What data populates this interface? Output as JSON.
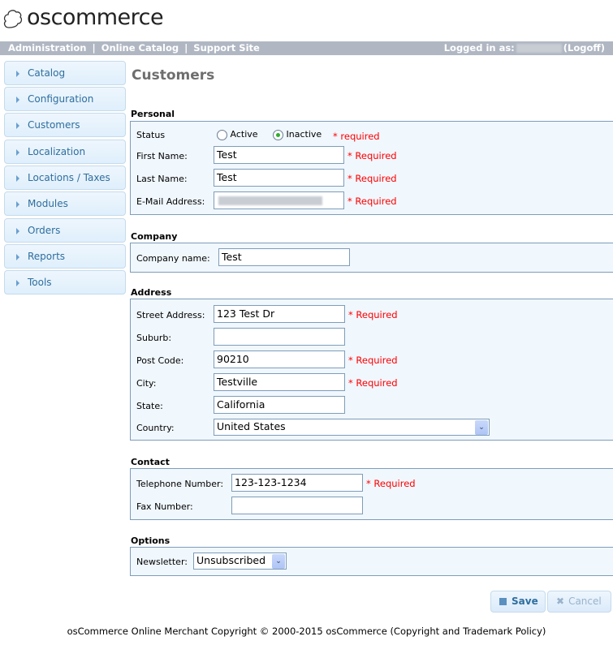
{
  "logo": {
    "text": "oscommerce"
  },
  "topbar": {
    "links": [
      "Administration",
      "Online Catalog",
      "Support Site"
    ],
    "logged_in_label": "Logged in as:",
    "logoff": "(Logoff)"
  },
  "sidebar": {
    "items": [
      "Catalog",
      "Configuration",
      "Customers",
      "Localization",
      "Locations / Taxes",
      "Modules",
      "Orders",
      "Reports",
      "Tools"
    ]
  },
  "page_title": "Customers",
  "personal": {
    "heading": "Personal",
    "status_label": "Status",
    "status_options": [
      "Active",
      "Inactive"
    ],
    "status_selected": "Inactive",
    "status_required": "* required",
    "first_name_label": "First Name:",
    "first_name": "Test",
    "last_name_label": "Last Name:",
    "last_name": "Test",
    "email_label": "E-Mail Address:",
    "required": "* Required"
  },
  "company": {
    "heading": "Company",
    "name_label": "Company name:",
    "name": "Test"
  },
  "address": {
    "heading": "Address",
    "street_label": "Street Address:",
    "street": "123 Test Dr",
    "suburb_label": "Suburb:",
    "suburb": "",
    "postcode_label": "Post Code:",
    "postcode": "90210",
    "city_label": "City:",
    "city": "Testville",
    "state_label": "State:",
    "state": "California",
    "country_label": "Country:",
    "country": "United States",
    "required": "* Required"
  },
  "contact": {
    "heading": "Contact",
    "telephone_label": "Telephone Number:",
    "telephone": "123-123-1234",
    "fax_label": "Fax Number:",
    "fax": "",
    "required": "* Required"
  },
  "options": {
    "heading": "Options",
    "newsletter_label": "Newsletter:",
    "newsletter": "Unsubscribed"
  },
  "buttons": {
    "save": "Save",
    "cancel": "Cancel"
  },
  "footer": "osCommerce Online Merchant Copyright © 2000-2015 osCommerce (Copyright and Trademark Policy)"
}
